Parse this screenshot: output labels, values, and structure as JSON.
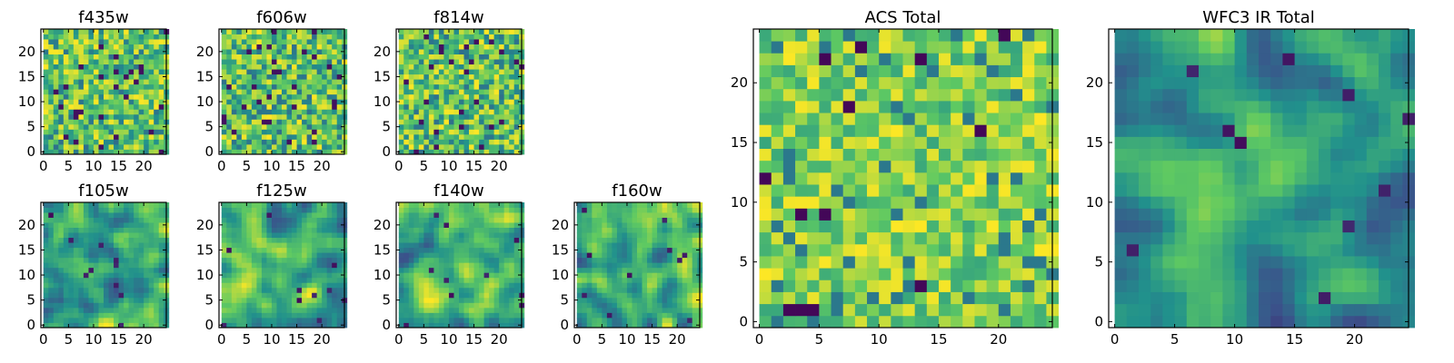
{
  "chart_data": [
    {
      "type": "heatmap",
      "title": "f435w",
      "xlim": [
        -0.5,
        24.5
      ],
      "ylim": [
        -0.5,
        24.5
      ],
      "xticks": [
        "0",
        "5",
        "10",
        "15",
        "20"
      ],
      "yticks": [
        "0",
        "5",
        "10",
        "15",
        "20"
      ],
      "grid_shape": [
        25,
        25
      ],
      "colormap": "viridis",
      "texture": "noise",
      "seed": 11
    },
    {
      "type": "heatmap",
      "title": "f606w",
      "xlim": [
        -0.5,
        24.5
      ],
      "ylim": [
        -0.5,
        24.5
      ],
      "xticks": [
        "0",
        "5",
        "10",
        "15",
        "20"
      ],
      "yticks": [
        "0",
        "5",
        "10",
        "15",
        "20"
      ],
      "grid_shape": [
        25,
        25
      ],
      "colormap": "viridis",
      "texture": "noise",
      "seed": 23
    },
    {
      "type": "heatmap",
      "title": "f814w",
      "xlim": [
        -0.5,
        24.5
      ],
      "ylim": [
        -0.5,
        24.5
      ],
      "xticks": [
        "0",
        "5",
        "10",
        "15",
        "20"
      ],
      "yticks": [
        "0",
        "5",
        "10",
        "15",
        "20"
      ],
      "grid_shape": [
        25,
        25
      ],
      "colormap": "viridis",
      "texture": "noise",
      "seed": 37
    },
    {
      "type": "heatmap",
      "title": "f105w",
      "xlim": [
        -0.5,
        24.5
      ],
      "ylim": [
        -0.5,
        24.5
      ],
      "xticks": [
        "0",
        "5",
        "10",
        "15",
        "20"
      ],
      "yticks": [
        "0",
        "5",
        "10",
        "15",
        "20"
      ],
      "grid_shape": [
        25,
        25
      ],
      "colormap": "viridis",
      "texture": "smooth",
      "seed": 41
    },
    {
      "type": "heatmap",
      "title": "f125w",
      "xlim": [
        -0.5,
        24.5
      ],
      "ylim": [
        -0.5,
        24.5
      ],
      "xticks": [
        "0",
        "5",
        "10",
        "15",
        "20"
      ],
      "yticks": [
        "0",
        "5",
        "10",
        "15",
        "20"
      ],
      "grid_shape": [
        25,
        25
      ],
      "colormap": "viridis",
      "texture": "smooth",
      "seed": 53
    },
    {
      "type": "heatmap",
      "title": "f140w",
      "xlim": [
        -0.5,
        24.5
      ],
      "ylim": [
        -0.5,
        24.5
      ],
      "xticks": [
        "0",
        "5",
        "10",
        "15",
        "20"
      ],
      "yticks": [
        "0",
        "5",
        "10",
        "15",
        "20"
      ],
      "grid_shape": [
        25,
        25
      ],
      "colormap": "viridis",
      "texture": "smooth",
      "seed": 67
    },
    {
      "type": "heatmap",
      "title": "f160w",
      "xlim": [
        -0.5,
        24.5
      ],
      "ylim": [
        -0.5,
        24.5
      ],
      "xticks": [
        "0",
        "5",
        "10",
        "15",
        "20"
      ],
      "yticks": [
        "0",
        "5",
        "10",
        "15",
        "20"
      ],
      "grid_shape": [
        25,
        25
      ],
      "colormap": "viridis",
      "texture": "smooth",
      "seed": 79
    },
    {
      "type": "heatmap",
      "title": "ACS Total",
      "xlim": [
        -0.5,
        24.5
      ],
      "ylim": [
        -0.5,
        24.5
      ],
      "xticks": [
        "0",
        "5",
        "10",
        "15",
        "20"
      ],
      "yticks": [
        "0",
        "5",
        "10",
        "15",
        "20"
      ],
      "grid_shape": [
        25,
        25
      ],
      "colormap": "viridis",
      "texture": "noise-bright",
      "seed": 97
    },
    {
      "type": "heatmap",
      "title": "WFC3 IR Total",
      "xlim": [
        -0.5,
        24.5
      ],
      "ylim": [
        -0.5,
        24.5
      ],
      "xticks": [
        "0",
        "5",
        "10",
        "15",
        "20"
      ],
      "yticks": [
        "0",
        "5",
        "10",
        "15",
        "20"
      ],
      "grid_shape": [
        25,
        25
      ],
      "colormap": "viridis",
      "texture": "smooth-peak",
      "peak": [
        13,
        13
      ],
      "seed": 101
    }
  ],
  "colors": {
    "viridis_stops": [
      "#440154",
      "#3b528b",
      "#21918c",
      "#5ec962",
      "#fde725"
    ],
    "axes_edge": "#000000",
    "background": "#ffffff"
  }
}
